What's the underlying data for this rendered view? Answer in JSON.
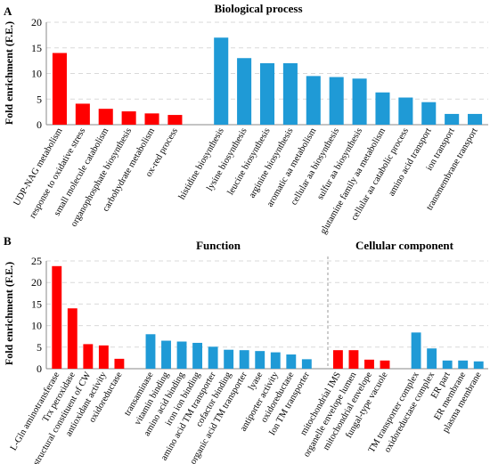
{
  "colors": {
    "red": "#ff0000",
    "blue": "#1f9ad6",
    "grid": "#d9d9d9",
    "axis": "#888888"
  },
  "chart_data": [
    {
      "panel": "A",
      "type": "bar",
      "title": "Biological process",
      "ylabel": "Fold enrichment (F.E.)",
      "ylim": [
        0,
        20
      ],
      "yticks": [
        0,
        5,
        10,
        15,
        20
      ],
      "grid": true,
      "categories": [
        "UDP-NAG metabolism",
        "response to oxidative stress",
        "small molecule catabolism",
        "organophosphate biosynthesis",
        "carbohydrate metabolism",
        "ox-red process",
        "",
        "histidine biosynthesis",
        "lysine biosynthesis",
        "leucine biosynthesis",
        "arginine biosynthesis",
        "aromatic aa metabolism",
        "cellular aa biosynthesis",
        "sulfur aa biosynthesis",
        "glutamine family aa metabolism",
        "cellular aa catabolic process",
        "amino acid transport",
        "ion transport",
        "transmembrane transport"
      ],
      "values": [
        14.0,
        4.1,
        3.1,
        2.6,
        2.2,
        1.9,
        null,
        17.0,
        13.0,
        12.0,
        12.0,
        9.5,
        9.3,
        9.0,
        6.3,
        5.3,
        4.4,
        2.1,
        2.1
      ],
      "bar_colors": [
        "red",
        "red",
        "red",
        "red",
        "red",
        "red",
        null,
        "blue",
        "blue",
        "blue",
        "blue",
        "blue",
        "blue",
        "blue",
        "blue",
        "blue",
        "blue",
        "blue",
        "blue"
      ]
    },
    {
      "panel": "B",
      "type": "bar",
      "titles": [
        "Function",
        "Cellular component"
      ],
      "ylabel": "Fold enrichment (F.E.)",
      "ylim": [
        0,
        25
      ],
      "yticks": [
        0,
        5,
        10,
        15,
        20,
        25
      ],
      "grid": true,
      "categories": [
        "L-Gln aminotransferase",
        "Trx peroxidase",
        "structural constituent of CW",
        "antioxidant activity",
        "oxidoreductase",
        "",
        "transaminase",
        "vitamin binding",
        "amino acid binding",
        "iron ion binding",
        "amino acid TM transporter",
        "cofactor binding",
        "organic acid TM transporter",
        "lyase",
        "antiporter activity",
        "oxidoreductase",
        "Ion TM transporter",
        "",
        "mitochondrial IMS",
        "organelle envelope lumen",
        "mitochondrial envelope",
        "fungal-type vacuole",
        "",
        "TM transporter complex",
        "oxidoreductase complex",
        "ER part",
        "ER membrane",
        "plasma membrane"
      ],
      "values": [
        23.8,
        14.0,
        5.7,
        5.4,
        2.3,
        null,
        8.0,
        6.5,
        6.3,
        6.0,
        5.1,
        4.4,
        4.3,
        4.1,
        3.8,
        3.3,
        2.2,
        null,
        4.3,
        4.3,
        2.1,
        1.9,
        null,
        8.4,
        4.7,
        1.9,
        1.9,
        1.7
      ],
      "bar_colors": [
        "red",
        "red",
        "red",
        "red",
        "red",
        null,
        "blue",
        "blue",
        "blue",
        "blue",
        "blue",
        "blue",
        "blue",
        "blue",
        "blue",
        "blue",
        "blue",
        null,
        "red",
        "red",
        "red",
        "red",
        null,
        "blue",
        "blue",
        "blue",
        "blue",
        "blue"
      ]
    }
  ]
}
